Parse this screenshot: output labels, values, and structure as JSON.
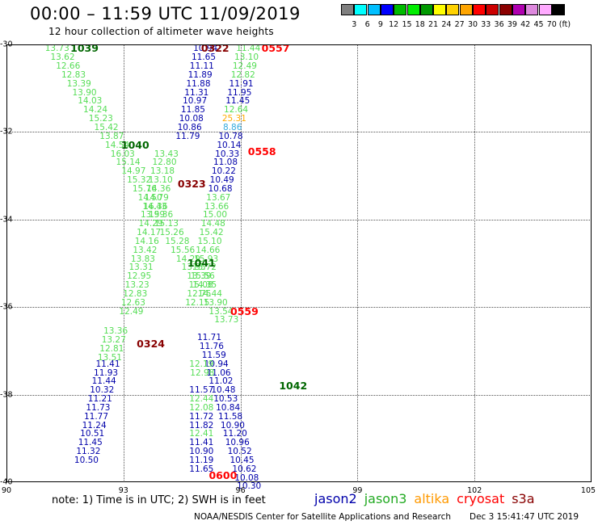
{
  "title": "00:00 – 11:59 UTC 11/09/2019",
  "subtitle": "12 hour collection of altimeter wave heights",
  "colors": {
    "jason2": "#0000aa",
    "jason3": "#22aa22",
    "altika": "#ff9900",
    "cryosat": "#ff0000",
    "s3a": "#880000",
    "pass_jason3": "#006600",
    "obs_green": "#55dd55",
    "obs_cyan": "#33aadd",
    "obs_orange": "#ffaa00"
  },
  "scale": {
    "colors": [
      "#7f7f7f",
      "#00ffff",
      "#00bfff",
      "#0000ff",
      "#00bb00",
      "#00ee00",
      "#009900",
      "#ffff00",
      "#ffd200",
      "#ffa500",
      "#ff0000",
      "#cc0000",
      "#8b0000",
      "#b000b0",
      "#dd88dd",
      "#ffaaff",
      "#000000"
    ],
    "ticks": [
      "3",
      "6",
      "9",
      "12",
      "15",
      "18",
      "21",
      "24",
      "27",
      "30",
      "33",
      "36",
      "39",
      "42",
      "45",
      "70"
    ],
    "unit": "(ft)"
  },
  "axes": {
    "lon_min": 90,
    "lon_max": 105,
    "lat_min": -40,
    "lat_max": -30,
    "lat_ticks": [
      -30,
      -32,
      -34,
      -36,
      -38,
      -40
    ],
    "lat_labels": [
      "-30",
      "-32",
      "-34",
      "-36",
      "-38",
      "-40"
    ],
    "lon_ticks": [
      90,
      93,
      96,
      99,
      102,
      105
    ],
    "lon_labels": [
      "90",
      "93",
      "96",
      "99",
      "102",
      "105"
    ],
    "grid_lon": [
      93,
      96,
      99,
      102
    ],
    "grid_lat": [
      -32,
      -34,
      -36,
      -38
    ]
  },
  "map": {
    "pass_labels": [
      {
        "text": "1039",
        "lon": 92.0,
        "lat": -30.1,
        "color": "pass_jason3"
      },
      {
        "text": "0322",
        "lon": 95.35,
        "lat": -30.1,
        "color": "s3a"
      },
      {
        "text": "0557",
        "lon": 96.9,
        "lat": -30.1,
        "color": "cryosat"
      },
      {
        "text": "1040",
        "lon": 93.3,
        "lat": -32.3,
        "color": "pass_jason3"
      },
      {
        "text": "0558",
        "lon": 96.55,
        "lat": -32.45,
        "color": "cryosat"
      },
      {
        "text": "0323",
        "lon": 94.75,
        "lat": -33.2,
        "color": "s3a"
      },
      {
        "text": "1041",
        "lon": 95.0,
        "lat": -35.0,
        "color": "pass_jason3"
      },
      {
        "text": "0559",
        "lon": 96.1,
        "lat": -36.1,
        "color": "cryosat"
      },
      {
        "text": "0324",
        "lon": 93.7,
        "lat": -36.85,
        "color": "s3a"
      },
      {
        "text": "1042",
        "lon": 97.35,
        "lat": -37.8,
        "color": "pass_jason3"
      },
      {
        "text": "0600",
        "lon": 95.55,
        "lat": -39.85,
        "color": "cryosat"
      }
    ],
    "tracks": [
      {
        "name": "jason3-1039",
        "color": "obs_green",
        "lon_start": 91.3,
        "lat_start": -30.1,
        "dlon": 0.14,
        "dlat": 0.2,
        "values": [
          "13.73",
          "13.62",
          "12.66",
          "12.83",
          "13.39",
          "13.90",
          "14.03",
          "14.24",
          "15.23",
          "15.42",
          "13.87",
          "14.54",
          "16.03",
          "15.14",
          "14.97",
          "15.32",
          "15.76",
          "14.50",
          "16.36",
          "15.36",
          "15.13",
          "15.26",
          "15.28",
          "15.56",
          "14.29",
          "13.95",
          "13.39",
          "14.35",
          "14.44",
          "13.90",
          "13.54",
          "13.73"
        ]
      },
      {
        "name": "cryosat-0557",
        "color": "obs_green",
        "lon_start": 96.2,
        "lat_start": -30.1,
        "dlon": -0.045,
        "dlat": 0.2,
        "values": [
          "11.44",
          "13.10",
          "12.49",
          "12.82",
          "11.91",
          "11.95",
          "11.45",
          "12.64",
          "25.31",
          "8.86",
          "10.78",
          "10.14",
          "10.33",
          "11.08",
          "10.22",
          "10.49",
          "10.68",
          "13.67",
          "13.66",
          "15.00",
          "14.48",
          "15.42",
          "15.10",
          "14.66",
          "15.93",
          "15.72",
          "15.56",
          "15.08",
          "12.75",
          "12.15"
        ],
        "colors": {
          "0": "obs_green",
          "1": "obs_green",
          "2": "obs_green",
          "3": "obs_green",
          "4": "jason2",
          "5": "jason2",
          "6": "jason2",
          "7": "obs_green",
          "8": "obs_orange",
          "9": "obs_cyan",
          "10": "jason2",
          "11": "jason2",
          "12": "jason2",
          "13": "jason2",
          "14": "jason2",
          "15": "jason2",
          "16": "jason2",
          "17": "obs_green",
          "18": "obs_green",
          "19": "obs_green",
          "20": "obs_green",
          "21": "obs_green",
          "22": "obs_green",
          "23": "obs_green",
          "24": "obs_green",
          "25": "obs_green",
          "26": "obs_green",
          "27": "obs_green",
          "28": "obs_green",
          "29": "obs_green"
        }
      },
      {
        "name": "s3a-0322",
        "color": "jason2",
        "lon_start": 95.1,
        "lat_start": -30.1,
        "dlon": -0.045,
        "dlat": 0.2,
        "values": [
          "10.94",
          "11.65",
          "11.11",
          "11.89",
          "11.88",
          "11.31",
          "10.97",
          "11.85",
          "10.08",
          "10.86",
          "11.79"
        ]
      },
      {
        "name": "s3a-0323-green",
        "color": "obs_green",
        "lon_start": 94.1,
        "lat_start": -32.5,
        "dlon": -0.05,
        "dlat": 0.2,
        "values": [
          "13.43",
          "12.80",
          "13.18",
          "13.10",
          "14.36",
          "14.79",
          "14.43",
          "13.99",
          "14.29",
          "14.17",
          "14.16",
          "13.42",
          "13.83",
          "13.31",
          "12.95",
          "13.23",
          "12.83",
          "12.63",
          "12.49"
        ]
      },
      {
        "name": "s3a-0323-blue",
        "color": "jason2",
        "lon_start": 95.2,
        "lat_start": -36.7,
        "dlon": 0.06,
        "dlat": 0.2,
        "values": [
          "11.71",
          "11.76",
          "11.59",
          "10.94",
          "11.06",
          "11.02",
          "10.48",
          "10.53",
          "10.84",
          "11.58",
          "10.90",
          "11.20",
          "10.96",
          "10.52",
          "10.45",
          "10.62",
          "10.08",
          "10.30"
        ]
      },
      {
        "name": "jason3-0324-green",
        "color": "obs_green",
        "lon_start": 92.8,
        "lat_start": -36.55,
        "dlon": -0.05,
        "dlat": 0.2,
        "values": [
          "13.36",
          "13.27",
          "12.81",
          "13.51"
        ]
      },
      {
        "name": "jason3-0324-blue",
        "color": "jason2",
        "lon_start": 92.6,
        "lat_start": -37.3,
        "dlon": -0.05,
        "dlat": 0.2,
        "values": [
          "11.41",
          "11.93",
          "11.44",
          "10.32",
          "11.21",
          "11.73",
          "11.77",
          "11.24",
          "10.51",
          "11.45",
          "11.32",
          "10.50"
        ]
      },
      {
        "name": "cryosat-0600-green",
        "color": "obs_green",
        "lon_start": 95.0,
        "lat_start": -37.3,
        "dlon": 0.02,
        "dlat": 0.2,
        "values": [
          "12.19",
          "12.98"
        ]
      },
      {
        "name": "cryosat-0600-blue",
        "color": "jason2",
        "lon_start": 95.0,
        "lat_start": -37.9,
        "dlon": 0.0,
        "dlat": 0.2,
        "values": [
          "11.57",
          "12.44",
          "12.08",
          "11.72",
          "11.82",
          "12.41",
          "11.41",
          "10.90",
          "11.19",
          "11.65"
        ],
        "colors": {
          "1": "obs_green",
          "2": "obs_green",
          "5": "obs_green"
        }
      }
    ]
  },
  "footer": {
    "note": "note:  1) Time is in UTC;  2) SWH is in feet",
    "legend": [
      {
        "label": "jason2",
        "color": "jason2"
      },
      {
        "label": "jason3",
        "color": "jason3"
      },
      {
        "label": "altika",
        "color": "altika"
      },
      {
        "label": "cryosat",
        "color": "cryosat"
      },
      {
        "label": "s3a",
        "color": "s3a"
      }
    ],
    "credit": "NOAA/NESDIS Center for Satellite Applications and Research",
    "timestamp": "Dec  3 15:41:47 UTC 2019"
  }
}
